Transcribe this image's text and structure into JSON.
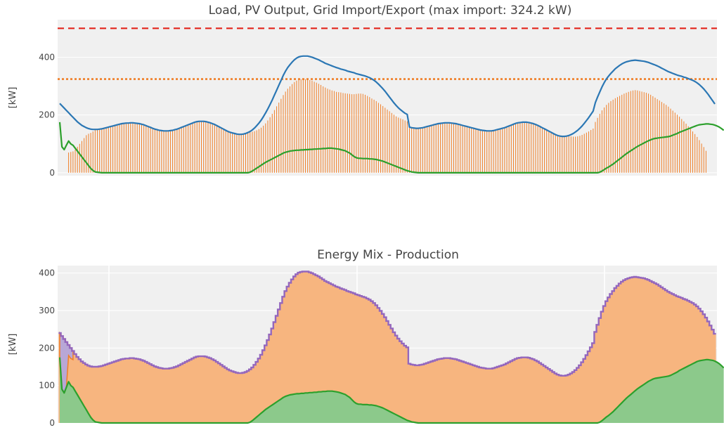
{
  "chart_data": [
    {
      "type": "line",
      "title": "Load, PV Output, Grid Import/Export (max import: 324.2 kW)",
      "ylabel": "[kW]",
      "ylim": [
        -10,
        530
      ],
      "yticks": [
        "0",
        "200",
        "400"
      ],
      "grid": [
        0,
        0,
        0,
        0,
        70,
        72,
        74,
        80,
        90,
        100,
        110,
        120,
        130,
        135,
        138,
        143,
        148,
        150,
        152,
        154,
        156,
        158,
        160,
        162,
        164,
        166,
        168,
        170,
        170,
        171,
        172,
        172,
        173,
        173,
        172,
        171,
        170,
        168,
        166,
        163,
        160,
        157,
        154,
        151,
        149,
        147,
        146,
        145,
        145,
        145,
        146,
        147,
        149,
        151,
        154,
        157,
        160,
        163,
        166,
        169,
        172,
        175,
        177,
        178,
        178,
        178,
        177,
        175,
        173,
        170,
        167,
        163,
        159,
        155,
        151,
        147,
        143,
        140,
        138,
        136,
        134,
        133,
        133,
        134,
        136,
        139,
        141,
        142,
        144,
        147,
        151,
        156,
        163,
        171,
        181,
        192,
        204,
        217,
        230,
        243,
        256,
        269,
        281,
        291,
        299,
        307,
        314,
        319,
        323,
        324,
        324,
        324,
        324,
        321,
        319,
        315,
        312,
        308,
        304,
        299,
        295,
        291,
        288,
        285,
        283,
        280,
        279,
        278,
        276,
        275,
        274,
        273,
        272,
        272,
        273,
        274,
        274,
        273,
        270,
        266,
        262,
        257,
        253,
        248,
        242,
        237,
        231,
        225,
        219,
        213,
        207,
        201,
        195,
        191,
        188,
        185,
        181,
        178,
        155,
        155,
        155,
        155,
        154,
        155,
        156,
        158,
        160,
        162,
        164,
        166,
        168,
        170,
        171,
        172,
        173,
        173,
        173,
        172,
        171,
        170,
        168,
        166,
        164,
        162,
        160,
        158,
        156,
        154,
        152,
        150,
        148,
        147,
        146,
        145,
        145,
        145,
        146,
        148,
        150,
        152,
        154,
        156,
        159,
        162,
        165,
        168,
        171,
        173,
        174,
        175,
        175,
        175,
        174,
        172,
        170,
        167,
        164,
        160,
        156,
        152,
        148,
        144,
        140,
        136,
        132,
        129,
        127,
        126,
        126,
        127,
        127,
        126,
        125,
        125,
        126,
        128,
        131,
        135,
        139,
        143,
        148,
        153,
        176,
        190,
        204,
        216,
        226,
        235,
        242,
        248,
        253,
        258,
        262,
        266,
        270,
        274,
        277,
        280,
        283,
        285,
        286,
        285,
        283,
        281,
        279,
        277,
        274,
        270,
        265,
        260,
        255,
        250,
        245,
        240,
        235,
        229,
        222,
        215,
        208,
        201,
        194,
        186,
        178,
        170,
        161,
        152,
        143,
        134,
        124,
        113,
        101,
        89,
        76
      ],
      "colors": {
        "load": "#2b77b4",
        "pv": "#2ca02c",
        "grid": "#f07e26",
        "limit": "#e3241c",
        "max_import": "#f07e26"
      },
      "limit_line": 500,
      "max_import_line": 324.2,
      "load": [
        240,
        232,
        224,
        216,
        208,
        200,
        192,
        184,
        176,
        170,
        164,
        160,
        156,
        153,
        151,
        150,
        150,
        150,
        151,
        152,
        154,
        156,
        158,
        160,
        162,
        164,
        166,
        168,
        170,
        171,
        172,
        172,
        173,
        173,
        172,
        171,
        170,
        168,
        166,
        163,
        160,
        157,
        154,
        151,
        149,
        147,
        146,
        145,
        145,
        145,
        146,
        147,
        149,
        151,
        154,
        157,
        160,
        163,
        166,
        169,
        172,
        175,
        177,
        178,
        178,
        178,
        177,
        175,
        173,
        170,
        167,
        163,
        159,
        155,
        151,
        147,
        143,
        140,
        138,
        136,
        134,
        133,
        133,
        134,
        136,
        139,
        143,
        148,
        155,
        163,
        172,
        182,
        194,
        207,
        221,
        236,
        252,
        269,
        286,
        303,
        320,
        337,
        352,
        364,
        374,
        383,
        391,
        397,
        401,
        403,
        404,
        404,
        404,
        402,
        400,
        397,
        394,
        391,
        387,
        383,
        379,
        376,
        373,
        370,
        367,
        364,
        362,
        359,
        357,
        355,
        352,
        350,
        348,
        346,
        343,
        341,
        339,
        337,
        335,
        332,
        329,
        325,
        320,
        314,
        307,
        299,
        291,
        282,
        272,
        262,
        252,
        242,
        233,
        225,
        218,
        212,
        206,
        202,
        158,
        156,
        155,
        154,
        154,
        155,
        156,
        158,
        160,
        162,
        164,
        166,
        168,
        170,
        171,
        172,
        173,
        173,
        173,
        172,
        171,
        170,
        168,
        166,
        164,
        162,
        160,
        158,
        156,
        154,
        152,
        150,
        148,
        147,
        146,
        145,
        145,
        145,
        146,
        148,
        150,
        152,
        154,
        156,
        159,
        162,
        165,
        168,
        171,
        173,
        174,
        175,
        175,
        175,
        174,
        172,
        170,
        167,
        164,
        160,
        156,
        152,
        148,
        144,
        140,
        136,
        132,
        129,
        127,
        126,
        126,
        127,
        129,
        132,
        136,
        141,
        147,
        154,
        162,
        171,
        181,
        191,
        202,
        213,
        243,
        262,
        280,
        297,
        312,
        325,
        335,
        344,
        352,
        360,
        366,
        372,
        377,
        381,
        384,
        386,
        388,
        389,
        390,
        389,
        388,
        387,
        386,
        384,
        382,
        379,
        376,
        373,
        370,
        366,
        362,
        358,
        354,
        350,
        347,
        344,
        341,
        338,
        336,
        334,
        331,
        329,
        326,
        323,
        320,
        316,
        311,
        305,
        298,
        290,
        281,
        271,
        260,
        249,
        238
      ],
      "pv": [
        175,
        90,
        80,
        95,
        110,
        100,
        95,
        85,
        75,
        65,
        55,
        45,
        35,
        25,
        15,
        8,
        3,
        2,
        1,
        0,
        0,
        0,
        0,
        0,
        0,
        0,
        0,
        0,
        0,
        0,
        0,
        0,
        0,
        0,
        0,
        0,
        0,
        0,
        0,
        0,
        0,
        0,
        0,
        0,
        0,
        0,
        0,
        0,
        0,
        0,
        0,
        0,
        0,
        0,
        0,
        0,
        0,
        0,
        0,
        0,
        0,
        0,
        0,
        0,
        0,
        0,
        0,
        0,
        0,
        0,
        0,
        0,
        0,
        0,
        0,
        0,
        0,
        0,
        0,
        0,
        0,
        0,
        0,
        0,
        0,
        0,
        2,
        6,
        11,
        16,
        21,
        26,
        31,
        36,
        40,
        44,
        48,
        52,
        56,
        60,
        64,
        68,
        71,
        73,
        75,
        76,
        77,
        78,
        78,
        79,
        79,
        80,
        80,
        81,
        81,
        82,
        82,
        83,
        83,
        84,
        84,
        85,
        85,
        85,
        84,
        83,
        82,
        80,
        78,
        76,
        72,
        68,
        62,
        56,
        52,
        50,
        50,
        49,
        49,
        49,
        48,
        48,
        47,
        46,
        44,
        42,
        40,
        37,
        34,
        31,
        28,
        25,
        22,
        19,
        16,
        13,
        10,
        7,
        5,
        3,
        2,
        1,
        0,
        0,
        0,
        0,
        0,
        0,
        0,
        0,
        0,
        0,
        0,
        0,
        0,
        0,
        0,
        0,
        0,
        0,
        0,
        0,
        0,
        0,
        0,
        0,
        0,
        0,
        0,
        0,
        0,
        0,
        0,
        0,
        0,
        0,
        0,
        0,
        0,
        0,
        0,
        0,
        0,
        0,
        0,
        0,
        0,
        0,
        0,
        0,
        0,
        0,
        0,
        0,
        0,
        0,
        0,
        0,
        0,
        0,
        0,
        0,
        0,
        0,
        0,
        0,
        0,
        0,
        0,
        0,
        0,
        0,
        0,
        0,
        0,
        0,
        0,
        0,
        0,
        0,
        0,
        0,
        0,
        0,
        2,
        6,
        11,
        16,
        20,
        25,
        30,
        36,
        42,
        48,
        54,
        60,
        66,
        71,
        76,
        81,
        86,
        91,
        95,
        99,
        103,
        107,
        111,
        114,
        117,
        119,
        120,
        121,
        122,
        123,
        124,
        125,
        127,
        130,
        133,
        136,
        140,
        143,
        146,
        149,
        152,
        155,
        158,
        161,
        164,
        166,
        167,
        168,
        169,
        169,
        168,
        167,
        165,
        162,
        158,
        153,
        147
      ]
    },
    {
      "type": "area",
      "title": "Energy Mix - Production",
      "ylabel": "[kW]",
      "ylim": [
        0,
        420
      ],
      "yticks": [
        "0",
        "100",
        "200",
        "300",
        "400"
      ],
      "grid": "on",
      "colors": {
        "total": "#9467bd",
        "grid": "#f7b57f",
        "grid_edge": "#f07e26",
        "pv": "#8cc98b",
        "pv_edge": "#2ca02c",
        "battery": "#b8a7d6"
      }
    }
  ]
}
